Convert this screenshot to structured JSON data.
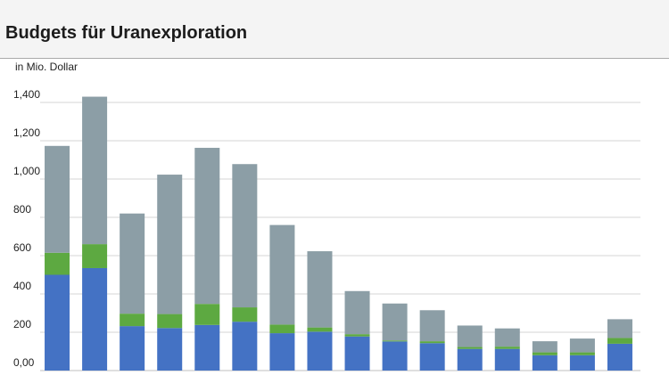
{
  "header": {
    "title": "Budgets für Uranexploration"
  },
  "chart_data": {
    "type": "bar",
    "stacked": true,
    "title": "Budgets für Uranexploration",
    "unit_label": "in Mio. Dollar",
    "xlabel": "",
    "ylabel": "",
    "ylim": [
      0,
      1400
    ],
    "y_ticks": [
      0,
      200,
      400,
      600,
      800,
      1000,
      1200,
      1400
    ],
    "y_tick_labels": [
      "0,00",
      "200",
      "400",
      "600",
      "800",
      "1,000",
      "1,200",
      "1,400"
    ],
    "grid": true,
    "legend": "none",
    "categories": [
      "",
      "",
      "",
      "",
      "",
      "",
      "",
      "",
      "",
      "",
      "",
      "",
      "",
      "",
      "",
      ""
    ],
    "series": [
      {
        "color": "#4472c4",
        "values": [
          500,
          535,
          232,
          222,
          238,
          255,
          195,
          203,
          178,
          152,
          143,
          113,
          113,
          80,
          80,
          140
        ]
      },
      {
        "color": "#5da941",
        "values": [
          115,
          125,
          65,
          73,
          110,
          75,
          45,
          22,
          12,
          5,
          10,
          10,
          12,
          15,
          15,
          30
        ]
      },
      {
        "color": "#8c9ea6",
        "values": [
          558,
          770,
          523,
          728,
          815,
          748,
          520,
          398,
          225,
          193,
          162,
          112,
          95,
          58,
          72,
          98
        ]
      }
    ]
  }
}
